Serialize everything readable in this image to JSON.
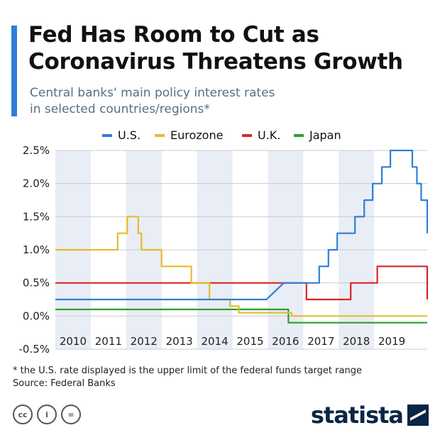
{
  "header": {
    "title_line1": "Fed Has Room to Cut as",
    "title_line2": "Coronavirus Threatens Growth",
    "subtitle_line1": "Central banks' main policy interest rates",
    "subtitle_line2": "in selected countries/regions*"
  },
  "chart_data": {
    "type": "line",
    "x_unit": "year",
    "x_ticks": [
      2010,
      2011,
      2012,
      2013,
      2014,
      2015,
      2016,
      2017,
      2018,
      2019
    ],
    "y_ticks": [
      2.5,
      2.0,
      1.5,
      1.0,
      0.5,
      0.0,
      -0.5
    ],
    "y_tick_labels": [
      "2.5%",
      "2.0%",
      "1.5%",
      "1.0%",
      "0.5%",
      "0.0%",
      "-0.5%"
    ],
    "ylim": [
      -0.5,
      2.5
    ],
    "xlim": [
      2009.5,
      2020.0
    ],
    "grid": true,
    "legend_position": "top",
    "series": [
      {
        "name": "U.S.",
        "color": "#2f7ed8",
        "points": [
          [
            2009.5,
            0.25
          ],
          [
            2015.46,
            0.25
          ],
          [
            2015.95,
            0.5
          ],
          [
            2016.95,
            0.5
          ],
          [
            2016.95,
            0.75
          ],
          [
            2017.21,
            0.75
          ],
          [
            2017.21,
            1.0
          ],
          [
            2017.46,
            1.0
          ],
          [
            2017.46,
            1.25
          ],
          [
            2017.96,
            1.25
          ],
          [
            2017.96,
            1.5
          ],
          [
            2018.22,
            1.5
          ],
          [
            2018.22,
            1.75
          ],
          [
            2018.46,
            1.75
          ],
          [
            2018.46,
            2.0
          ],
          [
            2018.72,
            2.0
          ],
          [
            2018.72,
            2.25
          ],
          [
            2018.96,
            2.25
          ],
          [
            2018.96,
            2.5
          ],
          [
            2019.58,
            2.5
          ],
          [
            2019.58,
            2.25
          ],
          [
            2019.71,
            2.25
          ],
          [
            2019.71,
            2.0
          ],
          [
            2019.83,
            2.0
          ],
          [
            2019.83,
            1.75
          ],
          [
            2020.0,
            1.75
          ],
          [
            2020.0,
            1.25
          ]
        ]
      },
      {
        "name": "Eurozone",
        "color": "#e3bd2c",
        "points": [
          [
            2009.5,
            1.0
          ],
          [
            2011.26,
            1.0
          ],
          [
            2011.26,
            1.25
          ],
          [
            2011.53,
            1.25
          ],
          [
            2011.53,
            1.5
          ],
          [
            2011.84,
            1.5
          ],
          [
            2011.84,
            1.25
          ],
          [
            2011.93,
            1.25
          ],
          [
            2011.93,
            1.0
          ],
          [
            2012.5,
            1.0
          ],
          [
            2012.5,
            0.75
          ],
          [
            2013.34,
            0.75
          ],
          [
            2013.34,
            0.5
          ],
          [
            2013.85,
            0.5
          ],
          [
            2013.85,
            0.25
          ],
          [
            2014.43,
            0.25
          ],
          [
            2014.43,
            0.15
          ],
          [
            2014.68,
            0.15
          ],
          [
            2014.68,
            0.05
          ],
          [
            2016.17,
            0.05
          ],
          [
            2016.17,
            0.0
          ],
          [
            2020.0,
            0.0
          ]
        ]
      },
      {
        "name": "U.K.",
        "color": "#d62728",
        "points": [
          [
            2009.5,
            0.5
          ],
          [
            2016.59,
            0.5
          ],
          [
            2016.59,
            0.25
          ],
          [
            2017.84,
            0.25
          ],
          [
            2017.84,
            0.5
          ],
          [
            2018.59,
            0.5
          ],
          [
            2018.59,
            0.75
          ],
          [
            2020.0,
            0.75
          ],
          [
            2020.0,
            0.25
          ]
        ]
      },
      {
        "name": "Japan",
        "color": "#2ca02c",
        "points": [
          [
            2009.5,
            0.1
          ],
          [
            2016.08,
            0.1
          ],
          [
            2016.08,
            -0.1
          ],
          [
            2020.0,
            -0.1
          ]
        ]
      }
    ]
  },
  "footnote": {
    "line1": "* the U.S. rate displayed is the upper limit of the federal funds target range",
    "line2": "Source: Federal Banks"
  },
  "license_icons": [
    "cc-icon",
    "attribution-icon",
    "no-derivatives-icon"
  ],
  "license_labels": [
    "cc",
    "i",
    "="
  ],
  "brand": {
    "name": "statista"
  }
}
